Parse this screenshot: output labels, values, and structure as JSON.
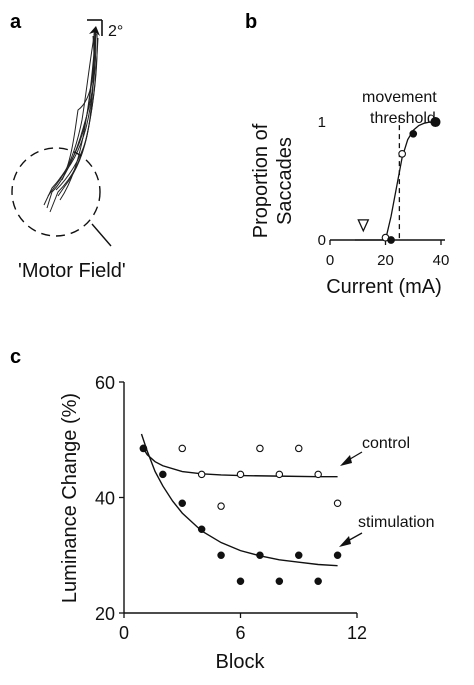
{
  "figure": {
    "panel_a": {
      "letter": "a",
      "scale_label": "2°",
      "motor_field_label": "'Motor Field'"
    },
    "panel_b": {
      "letter": "b",
      "annotation_line1": "movement",
      "annotation_line2": "threshold"
    },
    "panel_c": {
      "letter": "c"
    }
  },
  "chart_data": [
    {
      "panel": "b",
      "type": "scatter",
      "xlabel": "Current (mA)",
      "ylabel_line1": "Proportion of",
      "ylabel_line2": "Saccades",
      "xlim": [
        0,
        40
      ],
      "ylim": [
        0,
        1
      ],
      "xticks": [
        "0",
        "20",
        "40"
      ],
      "yticks": [
        "0",
        "1"
      ],
      "series": [
        {
          "marker": "open-circle",
          "x": [
            20,
            26
          ],
          "y": [
            0.02,
            0.73
          ]
        },
        {
          "marker": "filled-circle",
          "x": [
            22,
            30,
            38
          ],
          "y": [
            0.0,
            0.9,
            1.0
          ]
        }
      ],
      "fit_curve": {
        "x": [
          9,
          20,
          22,
          24,
          26,
          28,
          30,
          32,
          34,
          36,
          38
        ],
        "y": [
          0.0,
          0.0,
          0.2,
          0.45,
          0.7,
          0.85,
          0.93,
          0.97,
          0.99,
          1.0,
          1.0
        ]
      },
      "threshold_x": 25,
      "stimulus_marker_x": 12
    },
    {
      "panel": "c",
      "type": "scatter",
      "xlabel": "Block",
      "ylabel": "Luminance Change (%)",
      "xlim": [
        0,
        12
      ],
      "ylim": [
        20,
        60
      ],
      "xticks": [
        "0",
        "6",
        "12"
      ],
      "yticks": [
        "20",
        "40",
        "60"
      ],
      "series": [
        {
          "name": "control",
          "marker": "open-circle",
          "x": [
            1,
            3,
            4,
            5,
            6,
            7,
            8,
            9,
            10,
            11
          ],
          "y": [
            48.5,
            48.5,
            44,
            38.5,
            44,
            48.5,
            44,
            48.5,
            44,
            39
          ]
        },
        {
          "name": "stimulation",
          "marker": "filled-circle",
          "x": [
            1,
            2,
            3,
            4,
            5,
            6,
            7,
            8,
            9,
            10,
            11
          ],
          "y": [
            48.5,
            44,
            39,
            34.5,
            30,
            25.5,
            30,
            25.5,
            30,
            25.5,
            30
          ]
        }
      ],
      "fits": [
        {
          "name": "control",
          "x": [
            0.9,
            1.2,
            1.6,
            2,
            3,
            4,
            5,
            6,
            8,
            10,
            11
          ],
          "y": [
            49,
            47.4,
            46.2,
            45.5,
            44.5,
            44.1,
            43.9,
            43.8,
            43.7,
            43.6,
            43.6
          ]
        },
        {
          "name": "stimulation",
          "x": [
            0.9,
            1.2,
            1.6,
            2,
            2.5,
            3,
            4,
            5,
            6,
            7,
            8,
            9,
            10,
            11
          ],
          "y": [
            51,
            48,
            44.5,
            42,
            39.4,
            37.3,
            34.2,
            32.2,
            30.8,
            29.9,
            29.2,
            28.8,
            28.4,
            28.2
          ]
        }
      ]
    }
  ]
}
